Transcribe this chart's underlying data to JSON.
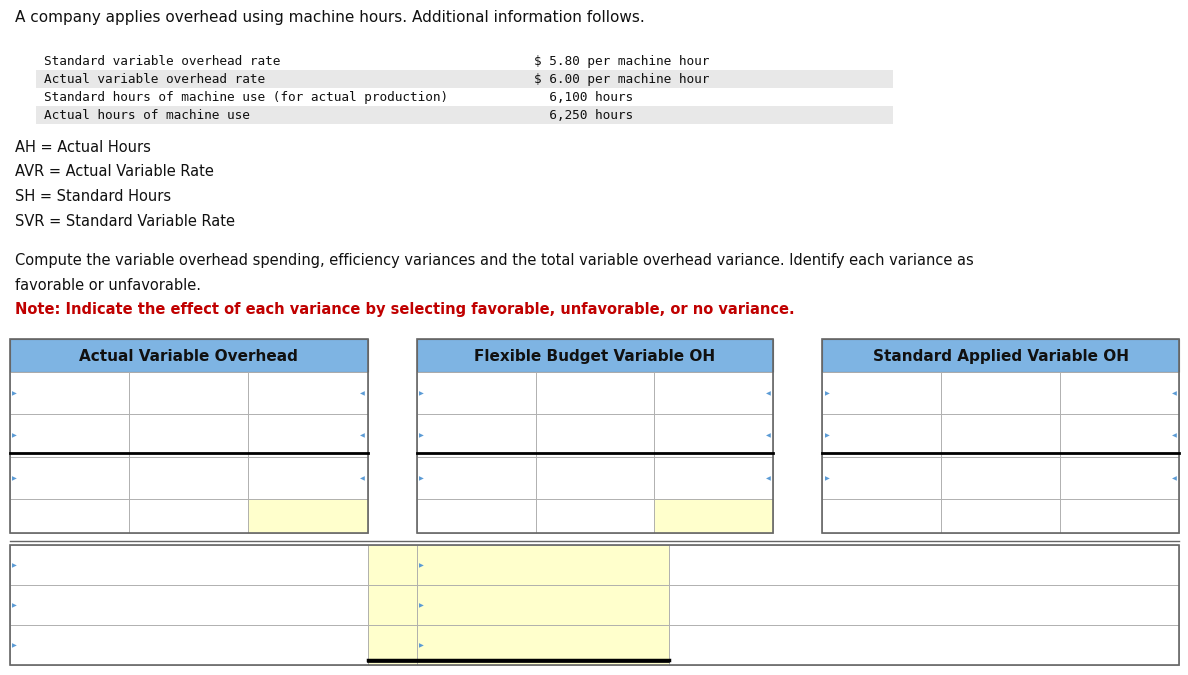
{
  "title_text": "A company applies overhead using machine hours. Additional information follows.",
  "info_rows": [
    [
      "Standard variable overhead rate",
      "$ 5.80 per machine hour"
    ],
    [
      "Actual variable overhead rate",
      "$ 6.00 per machine hour"
    ],
    [
      "Standard hours of machine use (for actual production)",
      "  6,100 hours"
    ],
    [
      "Actual hours of machine use",
      "  6,250 hours"
    ]
  ],
  "abbrev_lines": [
    "AH = Actual Hours",
    "AVR = Actual Variable Rate",
    "SH = Standard Hours",
    "SVR = Standard Variable Rate"
  ],
  "instruction_line1": "Compute the variable overhead spending, efficiency variances and the total variable overhead variance. Identify each variance as",
  "instruction_line2": "favorable or unfavorable.",
  "note_line": "Note: Indicate the effect of each variance by selecting favorable, unfavorable, or no variance.",
  "col_headers": [
    "Actual Variable Overhead",
    "Flexible Budget Variable OH",
    "Standard Applied Variable OH"
  ],
  "header_bg": "#7eb4e3",
  "yellow_bg": "#ffffcc",
  "white_bg": "#ffffff",
  "gray_bg": "#e8e8e8",
  "border_color": "#666666",
  "light_border": "#aaaaaa",
  "blue_marker": "#5b9bd5",
  "bg_color": "#ffffff",
  "title_fontsize": 11,
  "mono_fontsize": 9.2,
  "abbrev_fontsize": 10.5,
  "instruction_fontsize": 10.5,
  "header_fontsize": 11,
  "note_fontsize": 10.5
}
